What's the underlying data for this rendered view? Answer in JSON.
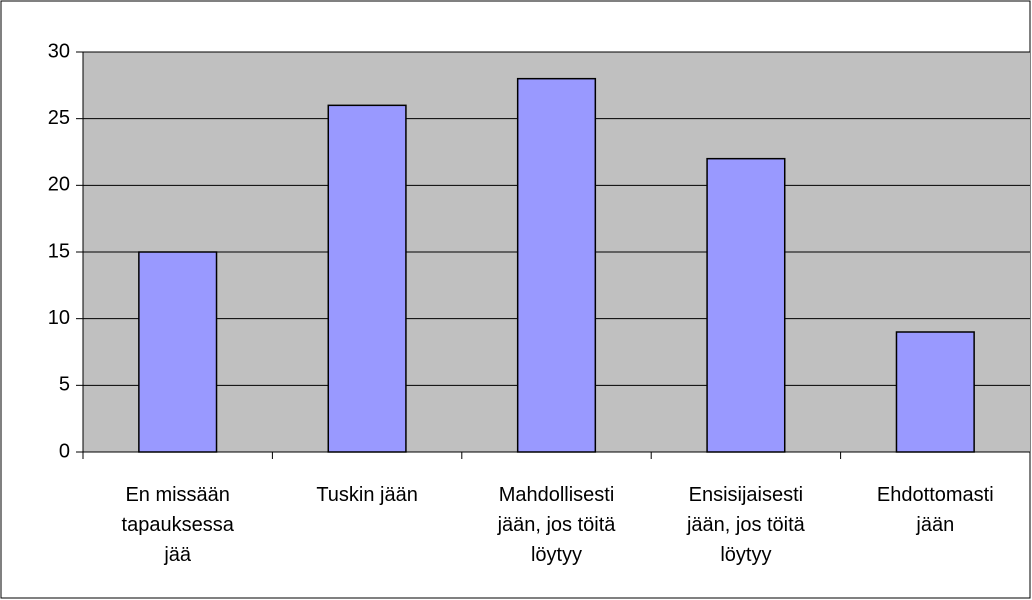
{
  "chart_data": {
    "type": "bar",
    "categories": [
      "En missään tapauksessa jää",
      "Tuskin jään",
      "Mahdollisesti jään, jos töitä löytyy",
      "Ensisijaisesti jään, jos töitä löytyy",
      "Ehdottomasti jään"
    ],
    "values": [
      15,
      26,
      28,
      22,
      9
    ],
    "color": "#9999ff",
    "plot_background": "#c0c0c0",
    "ylim": [
      0,
      30
    ],
    "yticks": [
      0,
      5,
      10,
      15,
      20,
      25,
      30
    ],
    "grid": true
  }
}
